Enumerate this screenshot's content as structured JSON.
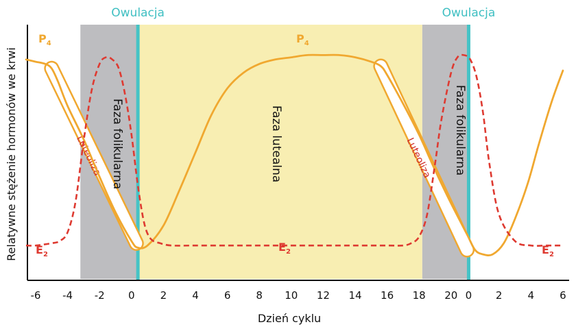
{
  "chart_data": {
    "type": "line",
    "xlabel": "Dzień cyklu",
    "ylabel": "Relatywne stężenie hormonów we krwi",
    "x_tick_labels": [
      "-6",
      "-4",
      "-2",
      "0",
      "2",
      "4",
      "6",
      "8",
      "10",
      "12",
      "14",
      "16",
      "18",
      "20",
      "0",
      "2",
      "4",
      "6"
    ],
    "ovulation_label": "Owulacja",
    "phases": [
      {
        "label": "Faza folikularna",
        "start_day": -3.2,
        "end_day": 0.4,
        "color": "#bdbdc0"
      },
      {
        "label": "Faza lutealna",
        "start_day": 0.4,
        "end_day": 18.2,
        "color": "#f8eeb2"
      },
      {
        "label": "Faza folikularna",
        "start_day": 18.2,
        "end_day": 21.1,
        "color": "#bdbdc0"
      }
    ],
    "ovulation_days": [
      0.4,
      21.1
    ],
    "luteolysis_label": "Luteoliza",
    "ylim": [
      0,
      100
    ],
    "series": [
      {
        "name": "P4",
        "label_main": "P",
        "label_sub": "4",
        "color": "#f0a830",
        "style": "solid",
        "x": [
          -6.6,
          -6,
          -5.4,
          -5,
          -4.6,
          -4,
          -3,
          -2,
          -1,
          0,
          0.4,
          1,
          2,
          3,
          4,
          5,
          6,
          7,
          8,
          9,
          10,
          11,
          12,
          13,
          14,
          15,
          15.6,
          16,
          17,
          18,
          19,
          20,
          21,
          21.5,
          22,
          22.6,
          23.3,
          24,
          24.8,
          25.5,
          26.3,
          27
        ],
        "values": [
          92,
          91,
          90,
          88,
          82,
          71,
          56,
          39,
          23,
          10,
          7,
          8,
          17,
          33,
          50,
          67,
          79,
          86,
          90,
          92,
          93,
          94,
          94,
          94,
          93,
          91,
          89,
          85,
          72,
          58,
          42,
          27,
          13,
          6,
          4,
          4,
          9,
          20,
          36,
          54,
          73,
          87
        ]
      },
      {
        "name": "E2",
        "label_main": "E",
        "label_sub": "2",
        "color": "#de3a31",
        "style": "dashed",
        "x": [
          -6.6,
          -6,
          -5,
          -4.5,
          -4,
          -3.5,
          -3,
          -2.5,
          -2,
          -1.6,
          -1.2,
          -0.8,
          -0.4,
          0,
          0.4,
          0.8,
          1.2,
          1.8,
          2.5,
          4,
          6,
          8,
          10,
          12,
          14,
          16,
          17,
          17.5,
          18,
          18.5,
          19,
          19.4,
          20,
          20.4,
          20.8,
          21.2,
          21.6,
          22,
          22.4,
          23,
          24,
          25,
          26,
          27
        ],
        "values": [
          8,
          8,
          9,
          10,
          14,
          28,
          55,
          78,
          90,
          93,
          92,
          88,
          76,
          58,
          35,
          18,
          11,
          9,
          8,
          8,
          8,
          8,
          8,
          8,
          8,
          8,
          8,
          9,
          12,
          22,
          45,
          65,
          86,
          93,
          94,
          92,
          84,
          68,
          45,
          22,
          10,
          8,
          8,
          8
        ]
      }
    ],
    "luteolysis_bands": [
      {
        "x": [
          -5.0,
          0.3
        ],
        "y": [
          88,
          9
        ]
      },
      {
        "x": [
          15.6,
          21.0
        ],
        "y": [
          89,
          6
        ]
      }
    ],
    "legend": "inline"
  }
}
